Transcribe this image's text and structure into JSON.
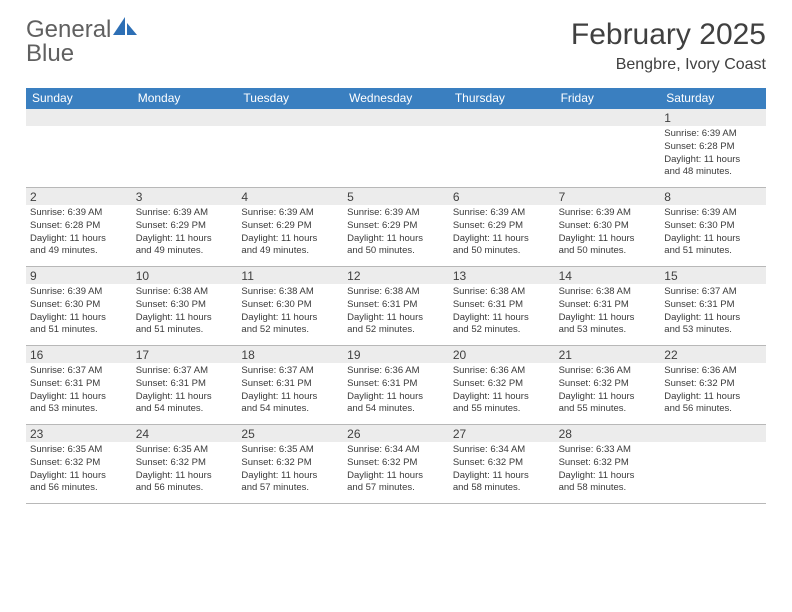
{
  "logo": {
    "text1": "General",
    "text2": "Blue"
  },
  "title": "February 2025",
  "location": "Bengbre, Ivory Coast",
  "colors": {
    "header_bg": "#3a7fc0",
    "header_text": "#ffffff",
    "daynum_bg": "#ececec",
    "border": "#b8b8b8",
    "logo_gray": "#606060",
    "logo_blue": "#2d6fb5"
  },
  "dayNames": [
    "Sunday",
    "Monday",
    "Tuesday",
    "Wednesday",
    "Thursday",
    "Friday",
    "Saturday"
  ],
  "weeks": [
    [
      {
        "blank": true
      },
      {
        "blank": true
      },
      {
        "blank": true
      },
      {
        "blank": true
      },
      {
        "blank": true
      },
      {
        "blank": true
      },
      {
        "day": "1",
        "sunrise": "Sunrise: 6:39 AM",
        "sunset": "Sunset: 6:28 PM",
        "day1": "Daylight: 11 hours",
        "day2": "and 48 minutes."
      }
    ],
    [
      {
        "day": "2",
        "sunrise": "Sunrise: 6:39 AM",
        "sunset": "Sunset: 6:28 PM",
        "day1": "Daylight: 11 hours",
        "day2": "and 49 minutes."
      },
      {
        "day": "3",
        "sunrise": "Sunrise: 6:39 AM",
        "sunset": "Sunset: 6:29 PM",
        "day1": "Daylight: 11 hours",
        "day2": "and 49 minutes."
      },
      {
        "day": "4",
        "sunrise": "Sunrise: 6:39 AM",
        "sunset": "Sunset: 6:29 PM",
        "day1": "Daylight: 11 hours",
        "day2": "and 49 minutes."
      },
      {
        "day": "5",
        "sunrise": "Sunrise: 6:39 AM",
        "sunset": "Sunset: 6:29 PM",
        "day1": "Daylight: 11 hours",
        "day2": "and 50 minutes."
      },
      {
        "day": "6",
        "sunrise": "Sunrise: 6:39 AM",
        "sunset": "Sunset: 6:29 PM",
        "day1": "Daylight: 11 hours",
        "day2": "and 50 minutes."
      },
      {
        "day": "7",
        "sunrise": "Sunrise: 6:39 AM",
        "sunset": "Sunset: 6:30 PM",
        "day1": "Daylight: 11 hours",
        "day2": "and 50 minutes."
      },
      {
        "day": "8",
        "sunrise": "Sunrise: 6:39 AM",
        "sunset": "Sunset: 6:30 PM",
        "day1": "Daylight: 11 hours",
        "day2": "and 51 minutes."
      }
    ],
    [
      {
        "day": "9",
        "sunrise": "Sunrise: 6:39 AM",
        "sunset": "Sunset: 6:30 PM",
        "day1": "Daylight: 11 hours",
        "day2": "and 51 minutes."
      },
      {
        "day": "10",
        "sunrise": "Sunrise: 6:38 AM",
        "sunset": "Sunset: 6:30 PM",
        "day1": "Daylight: 11 hours",
        "day2": "and 51 minutes."
      },
      {
        "day": "11",
        "sunrise": "Sunrise: 6:38 AM",
        "sunset": "Sunset: 6:30 PM",
        "day1": "Daylight: 11 hours",
        "day2": "and 52 minutes."
      },
      {
        "day": "12",
        "sunrise": "Sunrise: 6:38 AM",
        "sunset": "Sunset: 6:31 PM",
        "day1": "Daylight: 11 hours",
        "day2": "and 52 minutes."
      },
      {
        "day": "13",
        "sunrise": "Sunrise: 6:38 AM",
        "sunset": "Sunset: 6:31 PM",
        "day1": "Daylight: 11 hours",
        "day2": "and 52 minutes."
      },
      {
        "day": "14",
        "sunrise": "Sunrise: 6:38 AM",
        "sunset": "Sunset: 6:31 PM",
        "day1": "Daylight: 11 hours",
        "day2": "and 53 minutes."
      },
      {
        "day": "15",
        "sunrise": "Sunrise: 6:37 AM",
        "sunset": "Sunset: 6:31 PM",
        "day1": "Daylight: 11 hours",
        "day2": "and 53 minutes."
      }
    ],
    [
      {
        "day": "16",
        "sunrise": "Sunrise: 6:37 AM",
        "sunset": "Sunset: 6:31 PM",
        "day1": "Daylight: 11 hours",
        "day2": "and 53 minutes."
      },
      {
        "day": "17",
        "sunrise": "Sunrise: 6:37 AM",
        "sunset": "Sunset: 6:31 PM",
        "day1": "Daylight: 11 hours",
        "day2": "and 54 minutes."
      },
      {
        "day": "18",
        "sunrise": "Sunrise: 6:37 AM",
        "sunset": "Sunset: 6:31 PM",
        "day1": "Daylight: 11 hours",
        "day2": "and 54 minutes."
      },
      {
        "day": "19",
        "sunrise": "Sunrise: 6:36 AM",
        "sunset": "Sunset: 6:31 PM",
        "day1": "Daylight: 11 hours",
        "day2": "and 54 minutes."
      },
      {
        "day": "20",
        "sunrise": "Sunrise: 6:36 AM",
        "sunset": "Sunset: 6:32 PM",
        "day1": "Daylight: 11 hours",
        "day2": "and 55 minutes."
      },
      {
        "day": "21",
        "sunrise": "Sunrise: 6:36 AM",
        "sunset": "Sunset: 6:32 PM",
        "day1": "Daylight: 11 hours",
        "day2": "and 55 minutes."
      },
      {
        "day": "22",
        "sunrise": "Sunrise: 6:36 AM",
        "sunset": "Sunset: 6:32 PM",
        "day1": "Daylight: 11 hours",
        "day2": "and 56 minutes."
      }
    ],
    [
      {
        "day": "23",
        "sunrise": "Sunrise: 6:35 AM",
        "sunset": "Sunset: 6:32 PM",
        "day1": "Daylight: 11 hours",
        "day2": "and 56 minutes."
      },
      {
        "day": "24",
        "sunrise": "Sunrise: 6:35 AM",
        "sunset": "Sunset: 6:32 PM",
        "day1": "Daylight: 11 hours",
        "day2": "and 56 minutes."
      },
      {
        "day": "25",
        "sunrise": "Sunrise: 6:35 AM",
        "sunset": "Sunset: 6:32 PM",
        "day1": "Daylight: 11 hours",
        "day2": "and 57 minutes."
      },
      {
        "day": "26",
        "sunrise": "Sunrise: 6:34 AM",
        "sunset": "Sunset: 6:32 PM",
        "day1": "Daylight: 11 hours",
        "day2": "and 57 minutes."
      },
      {
        "day": "27",
        "sunrise": "Sunrise: 6:34 AM",
        "sunset": "Sunset: 6:32 PM",
        "day1": "Daylight: 11 hours",
        "day2": "and 58 minutes."
      },
      {
        "day": "28",
        "sunrise": "Sunrise: 6:33 AM",
        "sunset": "Sunset: 6:32 PM",
        "day1": "Daylight: 11 hours",
        "day2": "and 58 minutes."
      },
      {
        "blank": true
      }
    ]
  ]
}
